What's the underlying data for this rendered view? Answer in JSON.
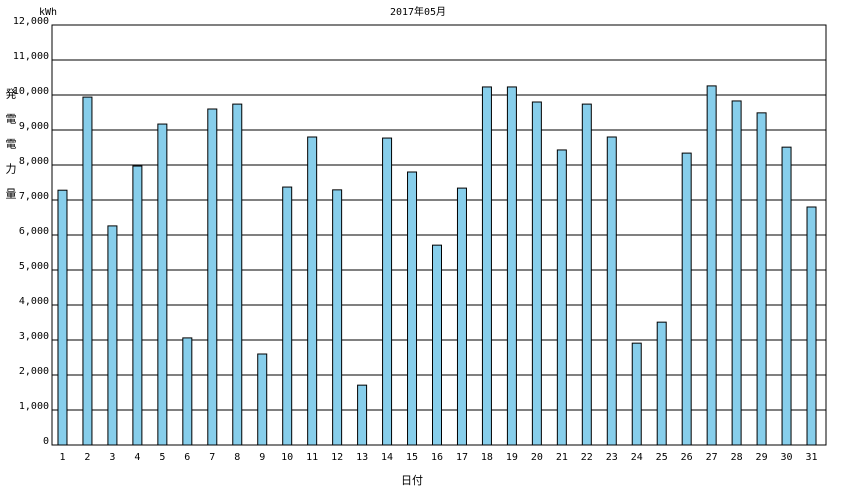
{
  "chart_data": {
    "type": "bar",
    "title": "2017年05月",
    "unit": "kWh",
    "y_label": "発電電力量",
    "x_label": "日付",
    "categories": [
      "1",
      "2",
      "3",
      "4",
      "5",
      "6",
      "7",
      "8",
      "9",
      "10",
      "11",
      "12",
      "13",
      "14",
      "15",
      "16",
      "17",
      "18",
      "19",
      "20",
      "21",
      "22",
      "23",
      "24",
      "25",
      "26",
      "27",
      "28",
      "29",
      "30",
      "31"
    ],
    "values": [
      7280,
      9940,
      6260,
      7970,
      9170,
      3060,
      9600,
      9740,
      2600,
      7370,
      8800,
      7290,
      1710,
      8770,
      7800,
      5710,
      7340,
      10230,
      10230,
      9800,
      8430,
      9740,
      8800,
      2910,
      3510,
      8340,
      10260,
      9830,
      9490,
      8510,
      6800
    ],
    "color": "#87ceeb",
    "ylim": [
      0,
      12000
    ],
    "yticks": [
      0,
      {
        "value": 1000,
        "label": "1,000"
      },
      {
        "value": 2000,
        "label": "2,000"
      },
      {
        "value": 3000,
        "label": "3,000"
      },
      {
        "value": 4000,
        "label": "4,000"
      },
      {
        "value": 5000,
        "label": "5,000"
      },
      {
        "value": 6000,
        "label": "6,000"
      },
      {
        "value": 7000,
        "label": "7,000"
      },
      {
        "value": 8000,
        "label": "8,000"
      },
      {
        "value": 9000,
        "label": "9,000"
      },
      {
        "value": 10000,
        "label": "10,000"
      },
      {
        "value": 11000,
        "label": "11,000"
      },
      {
        "value": 12000,
        "label": "12,000"
      }
    ],
    "grid": true
  }
}
